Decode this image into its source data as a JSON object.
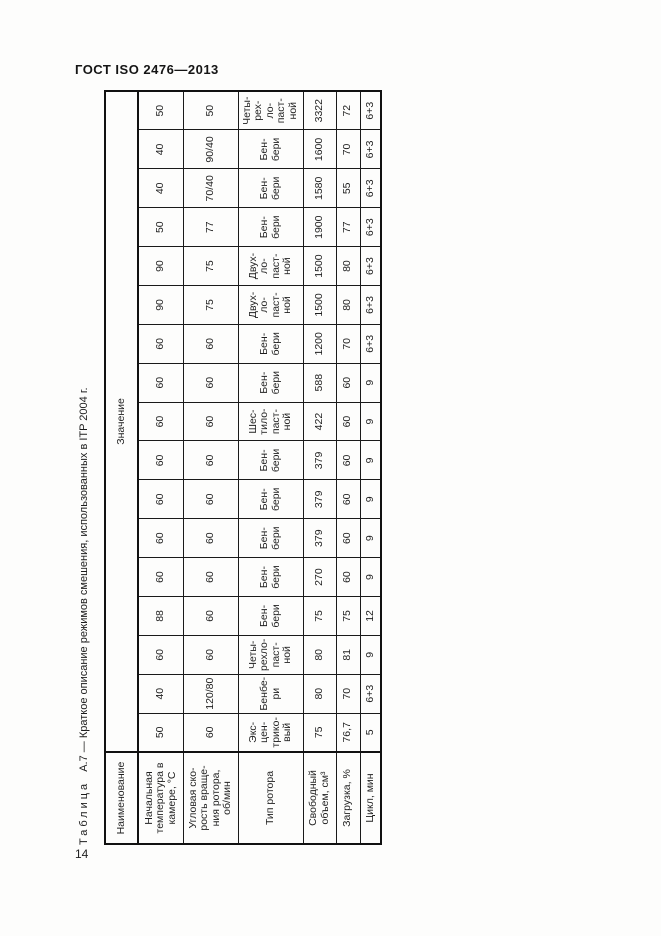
{
  "doc_header": "ГОСТ  ISO 2476—2013",
  "page_number": "14",
  "table_title": {
    "word": "Таблица",
    "rest": "А.7 — Краткое описание режимов смешения, использованных в ITP 2004 г."
  },
  "table": {
    "corner_header": "Наименование",
    "value_header": "Значение",
    "row_labels": {
      "temperature": "Начальная\nтемпература в\nкамере, °С",
      "speed": "Угловая ско-\nрость враще-\nния ротора,\nоб/мин",
      "rotor": "Тип ротора",
      "volume": "Свободный\nобъем, см³",
      "load": "Загрузка, %",
      "cycle": "Цикл, мин"
    },
    "regimes": [
      {
        "temperature": "50",
        "speed": "60",
        "rotor": "Экс-\nцен-\nтрико-\nвый",
        "volume": "75",
        "load": "76,7",
        "cycle": "5"
      },
      {
        "temperature": "40",
        "speed": "120/80",
        "rotor": "Бенбе-\nри",
        "volume": "80",
        "load": "70",
        "cycle": "6+3"
      },
      {
        "temperature": "60",
        "speed": "60",
        "rotor": "Четы-\nрехло-\nпаст-\nной",
        "volume": "80",
        "load": "81",
        "cycle": "9"
      },
      {
        "temperature": "88",
        "speed": "60",
        "rotor": "Бен-\nбери",
        "volume": "75",
        "load": "75",
        "cycle": "12"
      },
      {
        "temperature": "60",
        "speed": "60",
        "rotor": "Бен-\nбери",
        "volume": "270",
        "load": "60",
        "cycle": "9"
      },
      {
        "temperature": "60",
        "speed": "60",
        "rotor": "Бен-\nбери",
        "volume": "379",
        "load": "60",
        "cycle": "9"
      },
      {
        "temperature": "60",
        "speed": "60",
        "rotor": "Бен-\nбери",
        "volume": "379",
        "load": "60",
        "cycle": "9"
      },
      {
        "temperature": "60",
        "speed": "60",
        "rotor": "Бен-\nбери",
        "volume": "379",
        "load": "60",
        "cycle": "9"
      },
      {
        "temperature": "60",
        "speed": "60",
        "rotor": "Шес-\nтило-\nпаст-\nной",
        "volume": "422",
        "load": "60",
        "cycle": "9"
      },
      {
        "temperature": "60",
        "speed": "60",
        "rotor": "Бен-\nбери",
        "volume": "588",
        "load": "60",
        "cycle": "9"
      },
      {
        "temperature": "60",
        "speed": "60",
        "rotor": "Бен-\nбери",
        "volume": "1200",
        "load": "70",
        "cycle": "6+3"
      },
      {
        "temperature": "90",
        "speed": "75",
        "rotor": "Двух-\nло-\nпаст-\nной",
        "volume": "1500",
        "load": "80",
        "cycle": "6+3"
      },
      {
        "temperature": "90",
        "speed": "75",
        "rotor": "Двух-\nло-\nпаст-\nной",
        "volume": "1500",
        "load": "80",
        "cycle": "6+3"
      },
      {
        "temperature": "50",
        "speed": "77",
        "rotor": "Бен-\nбери",
        "volume": "1900",
        "load": "77",
        "cycle": "6+3"
      },
      {
        "temperature": "40",
        "speed": "70/40",
        "rotor": "Бен-\nбери",
        "volume": "1580",
        "load": "55",
        "cycle": "6+3"
      },
      {
        "temperature": "40",
        "speed": "90/40",
        "rotor": "Бен-\nбери",
        "volume": "1600",
        "load": "70",
        "cycle": "6+3"
      },
      {
        "temperature": "50",
        "speed": "50",
        "rotor": "Четы-\nрех-\nло-\nпаст-\nной",
        "volume": "3322",
        "load": "72",
        "cycle": "6+3"
      }
    ]
  }
}
